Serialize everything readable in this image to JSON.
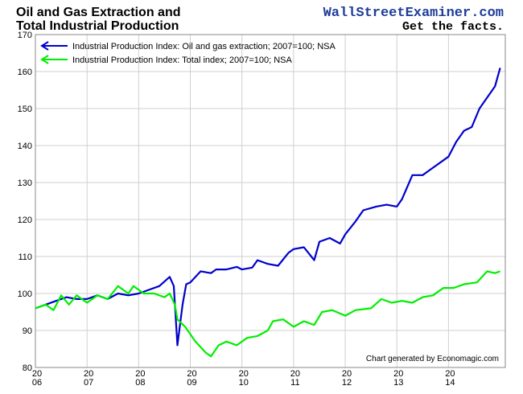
{
  "chart_data": {
    "type": "line",
    "title_lines": [
      "Oil and Gas Extraction and",
      "Total Industrial Production"
    ],
    "watermark": "WallStreetExaminer.com",
    "tagline": "Get the facts.",
    "credit": "Chart generated by Economagic.com",
    "xlim": [
      2006,
      2015.1
    ],
    "xticks": [
      {
        "value": 2006,
        "label": [
          "20",
          "06"
        ]
      },
      {
        "value": 2007,
        "label": [
          "20",
          "07"
        ]
      },
      {
        "value": 2008,
        "label": [
          "20",
          "08"
        ]
      },
      {
        "value": 2009,
        "label": [
          "20",
          "09"
        ]
      },
      {
        "value": 2010,
        "label": [
          "20",
          "10"
        ]
      },
      {
        "value": 2011,
        "label": [
          "20",
          "11"
        ]
      },
      {
        "value": 2012,
        "label": [
          "20",
          "12"
        ]
      },
      {
        "value": 2013,
        "label": [
          "20",
          "13"
        ]
      },
      {
        "value": 2014,
        "label": [
          "20",
          "14"
        ]
      }
    ],
    "ylim": [
      80,
      170
    ],
    "yticks": [
      80,
      90,
      100,
      110,
      120,
      130,
      140,
      150,
      160,
      170
    ],
    "grid": true,
    "legend": "upper left",
    "series": [
      {
        "name": "Industrial Production Index: Oil and gas extraction; 2007=100; NSA",
        "color": "#0000cc",
        "x": [
          2006.0,
          2006.2,
          2006.4,
          2006.6,
          2006.8,
          2007.0,
          2007.2,
          2007.4,
          2007.6,
          2007.8,
          2008.0,
          2008.2,
          2008.4,
          2008.6,
          2008.68,
          2008.75,
          2008.85,
          2008.92,
          2009.0,
          2009.2,
          2009.4,
          2009.5,
          2009.7,
          2009.9,
          2010.0,
          2010.2,
          2010.3,
          2010.5,
          2010.7,
          2010.9,
          2011.0,
          2011.2,
          2011.4,
          2011.5,
          2011.7,
          2011.9,
          2012.0,
          2012.2,
          2012.35,
          2012.6,
          2012.8,
          2013.0,
          2013.1,
          2013.3,
          2013.5,
          2013.65,
          2013.85,
          2014.0,
          2014.15,
          2014.3,
          2014.45,
          2014.6,
          2014.75,
          2014.9,
          2015.0
        ],
        "values": [
          96,
          97,
          98,
          99,
          98.5,
          98.5,
          99.5,
          98.5,
          100,
          99.5,
          100,
          101,
          102,
          104.5,
          102,
          86,
          97,
          102.5,
          103,
          106,
          105.5,
          106.5,
          106.5,
          107.2,
          106.5,
          107,
          109,
          108,
          107.5,
          111,
          112,
          112.5,
          109,
          114,
          115,
          113.5,
          116,
          119.5,
          122.5,
          123.5,
          124,
          123.5,
          125.5,
          132,
          132,
          133.5,
          135.5,
          137,
          141,
          144,
          145,
          150,
          153,
          156,
          161
        ]
      },
      {
        "name": "Industrial Production Index: Total index; 2007=100; NSA",
        "color": "#00ee00",
        "x": [
          2006.0,
          2006.2,
          2006.35,
          2006.5,
          2006.65,
          2006.8,
          2007.0,
          2007.2,
          2007.4,
          2007.6,
          2007.8,
          2007.9,
          2008.1,
          2008.3,
          2008.5,
          2008.6,
          2008.7,
          2008.75,
          2008.9,
          2009.1,
          2009.3,
          2009.4,
          2009.55,
          2009.7,
          2009.9,
          2010.1,
          2010.3,
          2010.5,
          2010.6,
          2010.8,
          2011.0,
          2011.2,
          2011.4,
          2011.55,
          2011.75,
          2012.0,
          2012.2,
          2012.5,
          2012.7,
          2012.9,
          2013.1,
          2013.3,
          2013.5,
          2013.7,
          2013.9,
          2014.1,
          2014.3,
          2014.55,
          2014.75,
          2014.9,
          2015.0
        ],
        "values": [
          96,
          97,
          95.5,
          99.5,
          97,
          99.5,
          97.5,
          99.5,
          98.5,
          102,
          100,
          102,
          100,
          100,
          99,
          100,
          97,
          93,
          91,
          87,
          84,
          83,
          86,
          87,
          86,
          88,
          88.5,
          90,
          92.5,
          93,
          91,
          92.5,
          91.5,
          95,
          95.5,
          94,
          95.5,
          96,
          98.5,
          97.5,
          98,
          97.5,
          99,
          99.5,
          101.5,
          101.5,
          102.5,
          103,
          106,
          105.5,
          106
        ]
      }
    ]
  }
}
